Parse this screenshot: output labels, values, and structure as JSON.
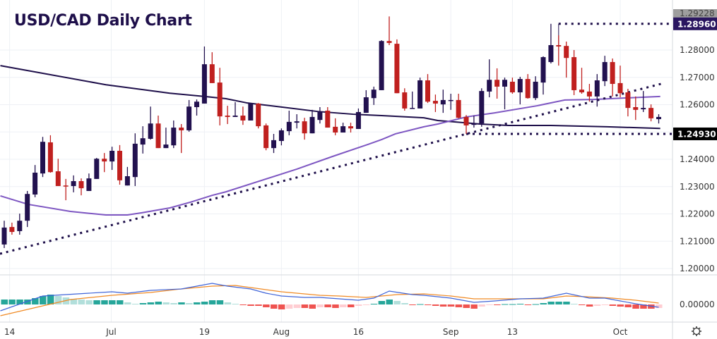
{
  "chart_data": {
    "type": "candlestick",
    "title": "USD/CAD Daily Chart",
    "ylim": [
      1.195,
      1.2955
    ],
    "price_ticks": [
      "1.28000",
      "1.27000",
      "1.26000",
      "1.24000",
      "1.23000",
      "1.22000",
      "1.21000",
      "1.20000"
    ],
    "price_tick_values": [
      1.28,
      1.27,
      1.26,
      1.24,
      1.23,
      1.22,
      1.21,
      1.2
    ],
    "x_labels": [
      {
        "label": "14",
        "i": 0.7
      },
      {
        "label": "Jul",
        "i": 13.9
      },
      {
        "label": "19",
        "i": 26
      },
      {
        "label": "Aug",
        "i": 36
      },
      {
        "label": "16",
        "i": 46
      },
      {
        "label": "Sep",
        "i": 58
      },
      {
        "label": "13",
        "i": 66
      },
      {
        "label": "Oct",
        "i": 80
      }
    ],
    "candles_ohlc": [
      [
        1.2088,
        1.2175,
        1.2075,
        1.215
      ],
      [
        1.2152,
        1.2168,
        1.2124,
        1.2134
      ],
      [
        1.2137,
        1.2201,
        1.2124,
        1.2175
      ],
      [
        1.2175,
        1.2284,
        1.2152,
        1.2273
      ],
      [
        1.2271,
        1.2379,
        1.2261,
        1.2351
      ],
      [
        1.2348,
        1.2482,
        1.2335,
        1.2464
      ],
      [
        1.2462,
        1.2488,
        1.2351,
        1.2353
      ],
      [
        1.2356,
        1.2402,
        1.2302,
        1.2302
      ],
      [
        1.2304,
        1.2328,
        1.225,
        1.2302
      ],
      [
        1.2302,
        1.2341,
        1.2279,
        1.232
      ],
      [
        1.232,
        1.233,
        1.2268,
        1.2294
      ],
      [
        1.2284,
        1.2348,
        1.2284,
        1.233
      ],
      [
        1.2328,
        1.2405,
        1.2328,
        1.2402
      ],
      [
        1.2402,
        1.2423,
        1.2353,
        1.2392
      ],
      [
        1.2392,
        1.2446,
        1.2361,
        1.2431
      ],
      [
        1.2431,
        1.2452,
        1.2307,
        1.2323
      ],
      [
        1.2304,
        1.2372,
        1.2304,
        1.2338
      ],
      [
        1.2335,
        1.2495,
        1.2302,
        1.2457
      ],
      [
        1.2454,
        1.2521,
        1.2421,
        1.2477
      ],
      [
        1.2475,
        1.2593,
        1.2472,
        1.2531
      ],
      [
        1.2531,
        1.256,
        1.2441,
        1.2441
      ],
      [
        1.2441,
        1.2516,
        1.2441,
        1.2454
      ],
      [
        1.2451,
        1.2542,
        1.2441,
        1.2516
      ],
      [
        1.2516,
        1.2529,
        1.2423,
        1.2506
      ],
      [
        1.2506,
        1.2617,
        1.2501,
        1.2593
      ],
      [
        1.2591,
        1.2619,
        1.256,
        1.2611
      ],
      [
        1.2604,
        1.2813,
        1.2604,
        1.2748
      ],
      [
        1.2748,
        1.2792,
        1.2679,
        1.2679
      ],
      [
        1.2681,
        1.2735,
        1.2524,
        1.2557
      ],
      [
        1.256,
        1.2596,
        1.2529,
        1.2555
      ],
      [
        1.2555,
        1.2609,
        1.2555,
        1.256
      ],
      [
        1.256,
        1.2593,
        1.2526,
        1.2542
      ],
      [
        1.2542,
        1.2606,
        1.2542,
        1.2604
      ],
      [
        1.2604,
        1.2606,
        1.2513,
        1.2521
      ],
      [
        1.2524,
        1.2531,
        1.2433,
        1.2441
      ],
      [
        1.2441,
        1.2493,
        1.2423,
        1.247
      ],
      [
        1.2467,
        1.2513,
        1.2451,
        1.2506
      ],
      [
        1.2503,
        1.2578,
        1.2488,
        1.2537
      ],
      [
        1.2534,
        1.2565,
        1.2513,
        1.2539
      ],
      [
        1.2539,
        1.2552,
        1.2472,
        1.2495
      ],
      [
        1.2495,
        1.2581,
        1.2495,
        1.2555
      ],
      [
        1.2544,
        1.2591,
        1.2531,
        1.2575
      ],
      [
        1.2578,
        1.2591,
        1.2516,
        1.2516
      ],
      [
        1.2519,
        1.255,
        1.2488,
        1.2498
      ],
      [
        1.2498,
        1.2534,
        1.2498,
        1.2521
      ],
      [
        1.2521,
        1.2534,
        1.2498,
        1.2513
      ],
      [
        1.2511,
        1.2586,
        1.2511,
        1.2573
      ],
      [
        1.257,
        1.2653,
        1.257,
        1.2627
      ],
      [
        1.2624,
        1.2666,
        1.2599,
        1.2655
      ],
      [
        1.2653,
        1.2836,
        1.2653,
        1.2833
      ],
      [
        1.2833,
        1.2923,
        1.2818,
        1.2826
      ],
      [
        1.2823,
        1.2839,
        1.2642,
        1.2642
      ],
      [
        1.2645,
        1.266,
        1.2578,
        1.2586
      ],
      [
        1.2586,
        1.2648,
        1.2586,
        1.2588
      ],
      [
        1.2586,
        1.2699,
        1.2586,
        1.2689
      ],
      [
        1.2689,
        1.2712,
        1.2606,
        1.2611
      ],
      [
        1.2614,
        1.2637,
        1.2573,
        1.2604
      ],
      [
        1.2601,
        1.2655,
        1.257,
        1.2617
      ],
      [
        1.2614,
        1.264,
        1.2581,
        1.2617
      ],
      [
        1.2617,
        1.264,
        1.255,
        1.2552
      ],
      [
        1.2555,
        1.2562,
        1.2493,
        1.2524
      ],
      [
        1.2526,
        1.256,
        1.2516,
        1.2531
      ],
      [
        1.2531,
        1.266,
        1.2519,
        1.265
      ],
      [
        1.2648,
        1.2766,
        1.2627,
        1.2691
      ],
      [
        1.2691,
        1.2733,
        1.2622,
        1.2666
      ],
      [
        1.2666,
        1.2699,
        1.2583,
        1.2691
      ],
      [
        1.2684,
        1.2699,
        1.264,
        1.2645
      ],
      [
        1.2645,
        1.2702,
        1.2601,
        1.2694
      ],
      [
        1.2694,
        1.2712,
        1.2622,
        1.2624
      ],
      [
        1.2624,
        1.2704,
        1.2617,
        1.2684
      ],
      [
        1.2681,
        1.2777,
        1.2637,
        1.2774
      ],
      [
        1.2756,
        1.2896,
        1.2751,
        1.2818
      ],
      [
        1.2818,
        1.2854,
        1.2743,
        1.2813
      ],
      [
        1.2815,
        1.2831,
        1.2699,
        1.2771
      ],
      [
        1.2774,
        1.28,
        1.2635,
        1.2653
      ],
      [
        1.2655,
        1.2735,
        1.264,
        1.2645
      ],
      [
        1.2648,
        1.2676,
        1.2611,
        1.263
      ],
      [
        1.263,
        1.2712,
        1.2593,
        1.2689
      ],
      [
        1.2686,
        1.2779,
        1.2668,
        1.2756
      ],
      [
        1.2756,
        1.2769,
        1.263,
        1.2676
      ],
      [
        1.2679,
        1.2743,
        1.2627,
        1.2642
      ],
      [
        1.2645,
        1.2658,
        1.2557,
        1.2588
      ],
      [
        1.2591,
        1.263,
        1.2544,
        1.2581
      ],
      [
        1.2583,
        1.265,
        1.2573,
        1.2588
      ],
      [
        1.2588,
        1.2601,
        1.2539,
        1.255
      ],
      [
        1.2547,
        1.2565,
        1.2531,
        1.2555
      ]
    ],
    "ma_long": [
      [
        -0.5,
        1.2743
      ],
      [
        13.2,
        1.2673
      ],
      [
        21.5,
        1.2642
      ],
      [
        26,
        1.263
      ],
      [
        28.8,
        1.2622
      ],
      [
        31.6,
        1.2606
      ],
      [
        36.1,
        1.2591
      ],
      [
        40.7,
        1.2575
      ],
      [
        45.3,
        1.2565
      ],
      [
        49,
        1.256
      ],
      [
        54.5,
        1.2552
      ],
      [
        56.3,
        1.2542
      ],
      [
        61.8,
        1.2529
      ],
      [
        65.5,
        1.2524
      ],
      [
        71,
        1.2524
      ],
      [
        78.3,
        1.2519
      ],
      [
        85.2,
        1.2513
      ]
    ],
    "ma_short": [
      [
        -0.5,
        1.2266
      ],
      [
        3.1,
        1.2235
      ],
      [
        8.6,
        1.2209
      ],
      [
        13.2,
        1.2196
      ],
      [
        16,
        1.2196
      ],
      [
        17.8,
        1.2204
      ],
      [
        21.5,
        1.2222
      ],
      [
        24.2,
        1.2243
      ],
      [
        27,
        1.2268
      ],
      [
        28.8,
        1.2281
      ],
      [
        38,
        1.2364
      ],
      [
        42.6,
        1.241
      ],
      [
        47.2,
        1.2454
      ],
      [
        49,
        1.2472
      ],
      [
        50.8,
        1.2493
      ],
      [
        54.5,
        1.2519
      ],
      [
        56.3,
        1.2529
      ],
      [
        60,
        1.2555
      ],
      [
        63.7,
        1.257
      ],
      [
        69.2,
        1.2596
      ],
      [
        72.8,
        1.2617
      ],
      [
        76.5,
        1.2619
      ],
      [
        80.2,
        1.2624
      ],
      [
        85.2,
        1.263
      ]
    ],
    "trendline": [
      [
        -0.55,
        1.2054
      ],
      [
        85.7,
        1.2679
      ]
    ],
    "levels": [
      {
        "label": "1.28960",
        "value": 1.2896,
        "from_i": 72,
        "color": "#2a1660"
      },
      {
        "label": "1.24930",
        "value": 1.2493,
        "from_i": 60,
        "color": "#000000"
      }
    ],
    "high_label": "1.29228",
    "high_value": 1.29228,
    "indicator": {
      "zero_label": "0.00000",
      "histogram": [
        0.0007,
        0.0007,
        0.0007,
        0.0007,
        0.0009,
        0.0012,
        0.0014,
        0.0012,
        0.001,
        0.0008,
        0.0007,
        0.0006,
        0.0006,
        0.0006,
        0.0006,
        0.0006,
        0.0003,
        0.0001,
        0.0002,
        0.0003,
        0.0004,
        0.0003,
        0.0002,
        0.0003,
        0.0002,
        0.0003,
        0.0004,
        0.0006,
        0.0006,
        0.0003,
        0.0001,
        -0.0001,
        -0.0002,
        -0.0002,
        -0.0004,
        -0.0006,
        -0.0007,
        -0.0006,
        -0.0005,
        -0.0005,
        -0.0006,
        -0.0004,
        -0.0004,
        -0.0005,
        -0.0004,
        -0.0004,
        -0.0002,
        -0.0001,
        0.0001,
        0.0005,
        0.0007,
        0.0005,
        0.0002,
        -5e-05,
        5e-05,
        -0.0001,
        -0.0002,
        -0.0003,
        -0.0003,
        -0.0004,
        -0.0005,
        -0.0006,
        -0.0003,
        -0.0001,
        -0.0001,
        5e-05,
        5e-05,
        0.0001,
        -5e-05,
        5e-05,
        0.0002,
        0.0004,
        0.0004,
        0.0004,
        0.0001,
        -0.0001,
        -0.0003,
        -0.0002,
        -0.0001,
        -0.0002,
        -0.0003,
        -0.0004,
        -0.0006,
        -0.0006,
        -0.0006,
        -0.0005
      ],
      "macd": [
        [
          -0.5,
          -0.0009
        ],
        [
          5,
          0.0012
        ],
        [
          14,
          0.0018
        ],
        [
          16,
          0.0016
        ],
        [
          19,
          0.002
        ],
        [
          23,
          0.0022
        ],
        [
          25,
          0.0026
        ],
        [
          27,
          0.003
        ],
        [
          29,
          0.0026
        ],
        [
          32,
          0.0022
        ],
        [
          34,
          0.0016
        ],
        [
          36,
          0.0012
        ],
        [
          39,
          0.001
        ],
        [
          41,
          0.001
        ],
        [
          43.5,
          0.0008
        ],
        [
          46,
          0.0006
        ],
        [
          48,
          0.0009
        ],
        [
          50,
          0.0019
        ],
        [
          53,
          0.0014
        ],
        [
          54.5,
          0.0013
        ],
        [
          58,
          0.0009
        ],
        [
          61,
          0.0003
        ],
        [
          63.7,
          0.0005
        ],
        [
          67,
          0.0008
        ],
        [
          70,
          0.0009
        ],
        [
          73,
          0.0016
        ],
        [
          76,
          0.0009
        ],
        [
          78,
          0.0009
        ],
        [
          80,
          0.0005
        ],
        [
          82,
          0.0001
        ],
        [
          85,
          -0.0004
        ]
      ],
      "signal": [
        [
          -0.5,
          -0.0016
        ],
        [
          5,
          -0.0002
        ],
        [
          8.6,
          0.0007
        ],
        [
          14,
          0.0013
        ],
        [
          19,
          0.0017
        ],
        [
          23,
          0.0022
        ],
        [
          27,
          0.0026
        ],
        [
          30,
          0.0027
        ],
        [
          32,
          0.0024
        ],
        [
          36,
          0.0018
        ],
        [
          41,
          0.0013
        ],
        [
          43.5,
          0.0012
        ],
        [
          47,
          0.001
        ],
        [
          51,
          0.0014
        ],
        [
          54.5,
          0.0015
        ],
        [
          58,
          0.0012
        ],
        [
          61,
          0.0008
        ],
        [
          65.5,
          0.0008
        ],
        [
          70,
          0.0008
        ],
        [
          73,
          0.0012
        ],
        [
          75.6,
          0.0011
        ],
        [
          79,
          0.0009
        ],
        [
          82,
          0.0006
        ],
        [
          85,
          0.0002
        ]
      ]
    },
    "colors": {
      "up": "#22114f",
      "down": "#c0201f",
      "ma_long": "#1e0f4a",
      "ma_short": "#7e57c2",
      "macd": "#3f64d8",
      "signal": "#f08a24",
      "hist_up_strong": "#26a69a",
      "hist_up_weak": "#b2dfdb",
      "hist_down_strong": "#ef5350",
      "hist_down_weak": "#ffcdd2"
    }
  }
}
